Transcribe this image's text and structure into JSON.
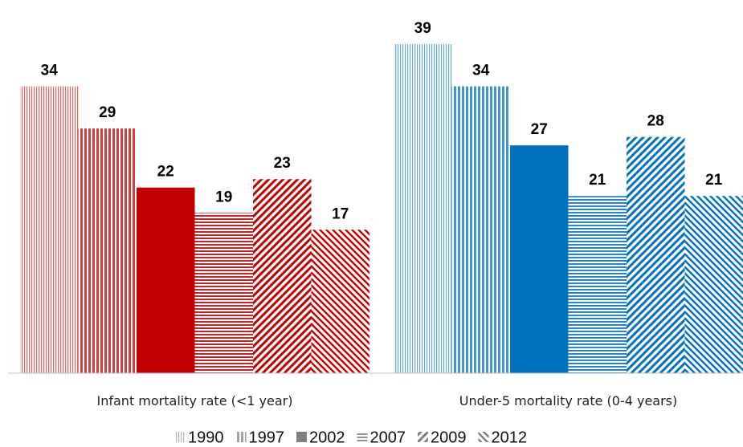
{
  "chart_data": {
    "type": "bar",
    "categories": [
      "Infant mortality rate (<1 year)",
      "Under-5 mortality rate (0-4 years)"
    ],
    "category_colors": [
      "#c00000",
      "#0070c0"
    ],
    "legend_color": "#7f7f7f",
    "series": [
      {
        "name": "1990",
        "pattern": "fine-vertical",
        "values": [
          34,
          39
        ]
      },
      {
        "name": "1997",
        "pattern": "vertical",
        "values": [
          29,
          34
        ]
      },
      {
        "name": "2002",
        "pattern": "solid",
        "values": [
          22,
          27
        ]
      },
      {
        "name": "2007",
        "pattern": "horizontal",
        "values": [
          19,
          21
        ]
      },
      {
        "name": "2009",
        "pattern": "wide-diagonal-up",
        "values": [
          23,
          28
        ]
      },
      {
        "name": "2012",
        "pattern": "zigzag",
        "values": [
          17,
          21
        ]
      }
    ]
  }
}
